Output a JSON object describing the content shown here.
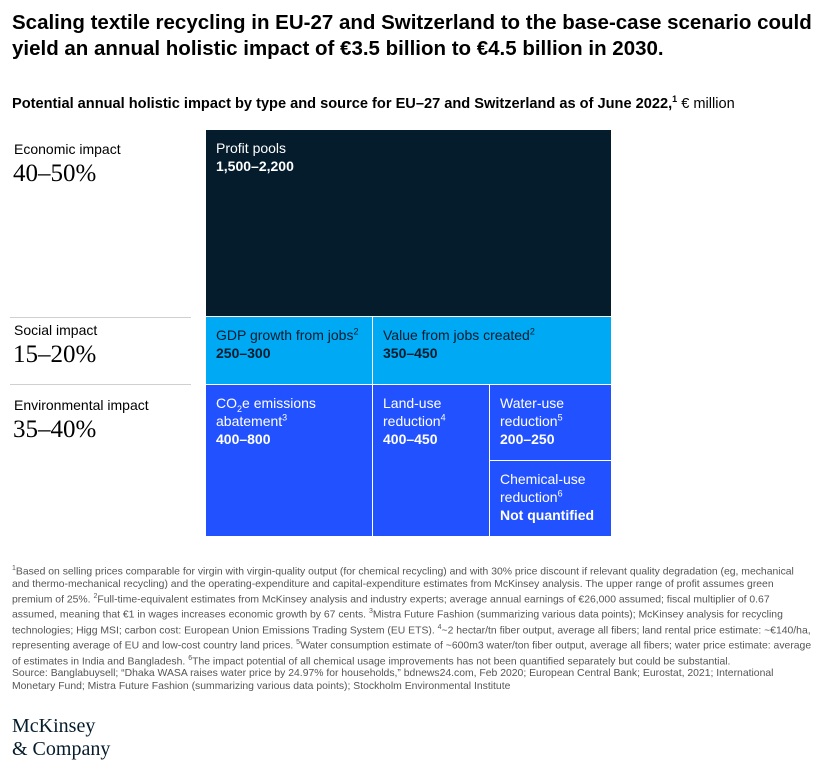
{
  "headline": "Scaling textile recycling in EU-27 and Switzerland to the base-case scenario could yield an annual holistic impact of €3.5 billion to €4.5 billion in 2030.",
  "subtitle": {
    "bold_text": "Potential annual holistic impact by type and source for EU–27 and Switzerland as of June 2022,",
    "footnote_ref": "1",
    "unit": " € million"
  },
  "categories": [
    {
      "label": "Economic impact",
      "range": "40–50%"
    },
    {
      "label": "Social impact",
      "range": "15–20%"
    },
    {
      "label": "Environmental impact",
      "range": "35–40%"
    }
  ],
  "chart_data": {
    "type": "treemap",
    "unit": "€ million",
    "groups": [
      {
        "category": "Economic impact",
        "share": "40–50%",
        "color": "#051c2c",
        "items": [
          {
            "name": "Profit pools",
            "value": "1,500–2,200",
            "low": 1500,
            "high": 2200
          }
        ]
      },
      {
        "category": "Social impact",
        "share": "15–20%",
        "color": "#00a9f4",
        "items": [
          {
            "name": "GDP growth from jobs",
            "footnote": "2",
            "value": "250–300",
            "low": 250,
            "high": 300
          },
          {
            "name": "Value from jobs created",
            "footnote": "2",
            "value": "350–450",
            "low": 350,
            "high": 450
          }
        ]
      },
      {
        "category": "Environmental impact",
        "share": "35–40%",
        "color": "#2251ff",
        "items": [
          {
            "name": "CO2e emissions abatement",
            "footnote": "3",
            "value": "400–800",
            "low": 400,
            "high": 800
          },
          {
            "name": "Land-use reduction",
            "footnote": "4",
            "value": "400–450",
            "low": 400,
            "high": 450
          },
          {
            "name": "Water-use reduction",
            "footnote": "5",
            "value": "200–250",
            "low": 200,
            "high": 250
          },
          {
            "name": "Chemical-use reduction",
            "footnote": "6",
            "value": "Not quantified",
            "low": null,
            "high": null
          }
        ]
      }
    ]
  },
  "footnotes": {
    "n1": "Based on selling prices comparable for virgin with virgin-quality output (for chemical recycling) and with 30% price discount if relevant quality degradation (eg, mechanical and thermo-mechanical recycling) and the operating-expenditure and capital-expenditure estimates from McKinsey analysis. The upper range of profit assumes green premium of 25%. ",
    "n2": "Full-time-equivalent estimates from McKinsey analysis and industry experts; average annual earnings of €26,000 assumed; fiscal multiplier of 0.67 assumed, meaning that €1 in wages increases economic growth by 67 cents. ",
    "n3": "Mistra Future Fashion (summarizing various data points); McKinsey analysis for recycling technologies; Higg MSI; carbon cost: European Union Emissions Trading System (EU ETS). ",
    "n4": "~2 hectar/tn fiber output, average all fibers; land rental price estimate: ~€140/ha, representing average of EU and low-cost country land prices. ",
    "n5": "Water consumption estimate of ~600m3 water/ton fiber output, average all fibers; water price estimate: average of estimates in India and Bangladesh. ",
    "n6": "The impact potential of all chemical usage improvements has not been quantified separately but could be substantial.",
    "source": "Source: Banglabuysell; “Dhaka WASA raises water price by 24.97% for households,” bdnews24.com, Feb 2020; European Central Bank; Eurostat, 2021; International Monetary Fund; Mistra Future Fashion (summarizing various data points); Stockholm Environmental Institute"
  },
  "logo": {
    "line1": "McKinsey",
    "line2": "& Company"
  }
}
